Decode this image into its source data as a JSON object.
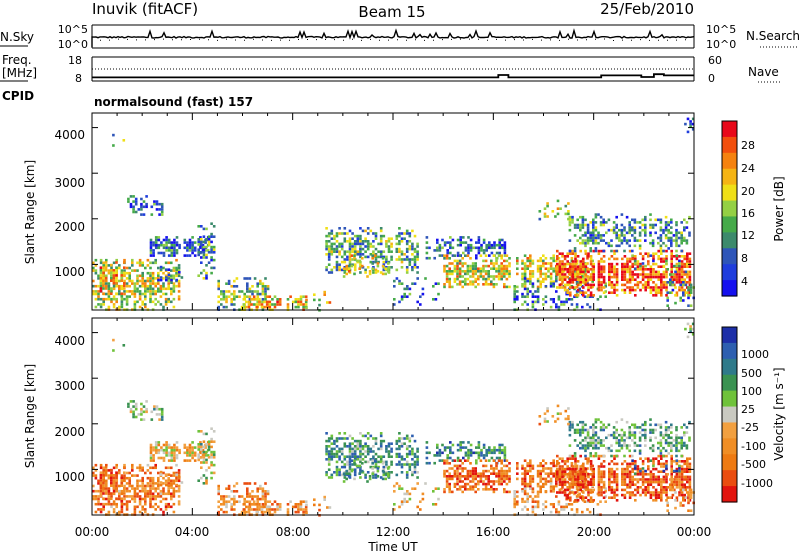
{
  "header": {
    "station": "Inuvik (fitACF)",
    "beam": "Beam 15",
    "date": "25/Feb/2010"
  },
  "noise_panel": {
    "left_label": "N.Sky",
    "right_label": "N.Search",
    "left_ticks": [
      "10^5",
      "10^0"
    ],
    "right_ticks": [
      "10^5",
      "10^0"
    ]
  },
  "freq_panel": {
    "left_label_line1": "Freq.",
    "left_label_line2": "[MHz]",
    "right_label": "Nave",
    "left_ticks": [
      "18",
      "8"
    ],
    "right_ticks": [
      "60",
      "0"
    ]
  },
  "cpid": {
    "label": "CPID",
    "value": "normalsound (fast) 157"
  },
  "x_axis": {
    "label": "Time UT",
    "ticks": [
      "00:00",
      "04:00",
      "08:00",
      "12:00",
      "16:00",
      "20:00",
      "00:00"
    ]
  },
  "power_panel": {
    "ylabel": "Slant Range [km]",
    "yticks": [
      "4000",
      "3000",
      "2000",
      "1000"
    ],
    "colorbar_label": "Power [dB]",
    "colorbar_ticks": [
      "28",
      "24",
      "20",
      "16",
      "12",
      "8",
      "4"
    ],
    "colors": [
      "#e8081a",
      "#f24f0d",
      "#f5820f",
      "#f5b414",
      "#efdf17",
      "#94d044",
      "#45aa49",
      "#3c8a6c",
      "#2e55b8",
      "#1f3ddc",
      "#1510ee"
    ]
  },
  "velocity_panel": {
    "ylabel": "Slant Range [km]",
    "yticks": [
      "4000",
      "3000",
      "2000",
      "1000"
    ],
    "colorbar_label": "Velocity [m s⁻¹]",
    "colorbar_ticks": [
      "1000",
      "500",
      "100",
      "25",
      "-25",
      "-100",
      "-500",
      "-1000"
    ],
    "colors": [
      "#1d2fa8",
      "#2d5fb0",
      "#2f7a8a",
      "#3a9251",
      "#6fc23a",
      "#c9c9c1",
      "#f2a040",
      "#f08e25",
      "#ee7a12",
      "#ea4d10",
      "#e2140e"
    ]
  },
  "chart_data": {
    "type": "heatmap",
    "x": [
      "00:00",
      "04:00",
      "08:00",
      "12:00",
      "16:00",
      "20:00",
      "00:00"
    ],
    "xlabel": "Time UT",
    "ylabel": "Slant Range [km]",
    "ylim": [
      180,
      4500
    ],
    "power_db_range": [
      0,
      30
    ],
    "velocity_range": [
      -1000,
      1000
    ],
    "nave_steps": [
      {
        "x": 0,
        "y": 9
      },
      {
        "x": 16.2,
        "y": 9
      },
      {
        "x": 16.2,
        "y": 15
      },
      {
        "x": 16.6,
        "y": 15
      },
      {
        "x": 16.6,
        "y": 9
      },
      {
        "x": 20.3,
        "y": 9
      },
      {
        "x": 20.3,
        "y": 14
      },
      {
        "x": 21.9,
        "y": 14
      },
      {
        "x": 21.9,
        "y": 10
      },
      {
        "x": 22.4,
        "y": 10
      },
      {
        "x": 22.4,
        "y": 17
      },
      {
        "x": 22.8,
        "y": 17
      },
      {
        "x": 22.8,
        "y": 14
      },
      {
        "x": 24,
        "y": 14
      }
    ]
  }
}
